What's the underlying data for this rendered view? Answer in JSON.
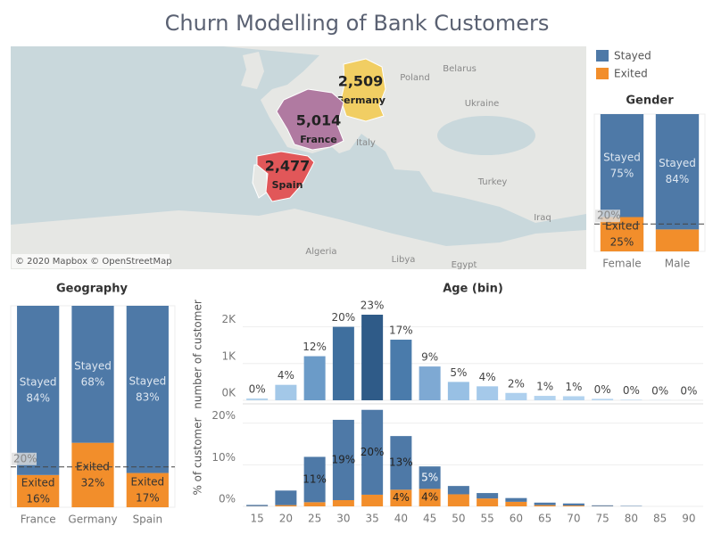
{
  "title": "Churn Modelling of  Bank Customers",
  "legend": {
    "series": [
      {
        "name": "Stayed",
        "color": "#4e79a7"
      },
      {
        "name": "Exited",
        "color": "#f28e2b"
      }
    ]
  },
  "chart_data": [
    {
      "type": "map",
      "regions": [
        {
          "name": "Germany",
          "value": 2509,
          "value_label": "2,509",
          "color": "#f1ce63"
        },
        {
          "name": "France",
          "value": 5014,
          "value_label": "5,014",
          "color": "#b07aa1"
        },
        {
          "name": "Spain",
          "value": 2477,
          "value_label": "2,477",
          "color": "#e15759"
        }
      ],
      "place_labels": [
        "Belarus",
        "Poland",
        "Ukraine",
        "Italy",
        "Turkey",
        "Iraq",
        "Algeria",
        "Libya",
        "Egypt"
      ],
      "attribution": "© 2020 Mapbox © OpenStreetMap"
    },
    {
      "type": "stacked_percent_bar",
      "title": "Gender",
      "categories": [
        "Female",
        "Male"
      ],
      "series": [
        {
          "name": "Stayed",
          "color": "#4e79a7",
          "values": [
            75,
            84
          ],
          "value_labels": [
            "75%",
            "84%"
          ]
        },
        {
          "name": "Exited",
          "color": "#f28e2b",
          "values": [
            25,
            16
          ],
          "value_labels": [
            "25%",
            null
          ]
        }
      ],
      "ylim": [
        0,
        100
      ],
      "reference_line": {
        "value": 20,
        "label": "20%"
      }
    },
    {
      "type": "stacked_percent_bar",
      "title": "Geography",
      "categories": [
        "France",
        "Germany",
        "Spain"
      ],
      "series": [
        {
          "name": "Stayed",
          "color": "#4e79a7",
          "values": [
            84,
            68,
            83
          ],
          "value_labels": [
            "84%",
            "68%",
            "83%"
          ]
        },
        {
          "name": "Exited",
          "color": "#f28e2b",
          "values": [
            16,
            32,
            17
          ],
          "value_labels": [
            "16%",
            "32%",
            "17%"
          ]
        }
      ],
      "ylim": [
        0,
        100
      ],
      "reference_line": {
        "value": 20,
        "label": "20%"
      }
    },
    {
      "type": "age_panels",
      "title": "Age (bin)",
      "categories": [
        "15",
        "20",
        "25",
        "30",
        "35",
        "40",
        "45",
        "50",
        "55",
        "60",
        "65",
        "70",
        "75",
        "80",
        "85",
        "90"
      ],
      "count": {
        "y_label": "number of customer",
        "values": [
          50,
          420,
          1200,
          2000,
          2330,
          1650,
          920,
          500,
          380,
          200,
          120,
          110,
          40,
          15,
          5,
          2
        ],
        "colors": [
          "#b4d3ec",
          "#a3c8e8",
          "#6b9bc8",
          "#3f6f9e",
          "#2f5b88",
          "#4a7bab",
          "#7ea9d3",
          "#98c0e4",
          "#a5c9ea",
          "#aed0ee",
          "#b3d3ef",
          "#b3d3ef",
          "#b6d5f0",
          "#b8d6f0",
          "#b8d6f0",
          "#b8d6f0"
        ],
        "percent_labels": [
          "0%",
          "4%",
          "12%",
          "20%",
          "23%",
          "17%",
          "9%",
          "5%",
          "4%",
          "2%",
          "1%",
          "1%",
          "0%",
          "0%",
          "0%",
          "0%"
        ],
        "ylim": [
          0,
          2500
        ],
        "yticks": [
          {
            "value": 0,
            "label": "0K"
          },
          {
            "value": 1000,
            "label": "1K"
          },
          {
            "value": 2000,
            "label": "2K"
          }
        ]
      },
      "share": {
        "y_label": "% of customer",
        "series": [
          {
            "name": "Stayed",
            "color": "#4e79a7",
            "values": [
              0.3,
              3.5,
              10.9,
              19.3,
              20.4,
              12.9,
              5.4,
              2.0,
              1.3,
              0.9,
              0.6,
              0.5,
              0.2,
              0.1,
              0,
              0
            ],
            "value_labels": [
              null,
              null,
              "11%",
              "19%",
              "20%",
              "13%",
              "5%",
              null,
              null,
              null,
              null,
              null,
              null,
              null,
              null,
              null
            ]
          },
          {
            "name": "Exited",
            "color": "#f28e2b",
            "values": [
              0.05,
              0.3,
              1.0,
              1.5,
              2.8,
              4.0,
              4.2,
              2.9,
              1.9,
              1.1,
              0.3,
              0.2,
              0.05,
              0,
              0,
              0
            ],
            "value_labels": [
              null,
              null,
              null,
              null,
              null,
              "4%",
              "4%",
              null,
              null,
              null,
              null,
              null,
              null,
              null,
              null,
              null
            ]
          }
        ],
        "ylim": [
          0,
          24
        ],
        "yticks": [
          {
            "value": 0,
            "label": "0%"
          },
          {
            "value": 10,
            "label": "10%"
          },
          {
            "value": 20,
            "label": "20%"
          }
        ]
      }
    }
  ]
}
